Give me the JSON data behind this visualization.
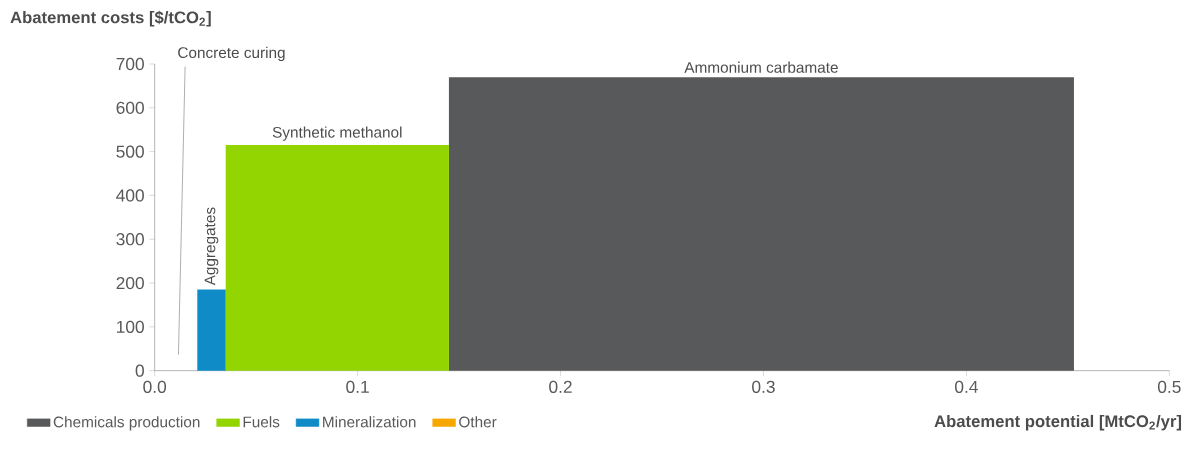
{
  "chart_data": {
    "type": "area",
    "ylabel": "Abatement costs [$/tCO$_{2}$]",
    "xlabel": "Abatement potential [MtCO$_{2}$/yr]",
    "series": [
      {
        "name": "Chemicals production",
        "color": "#58595b",
        "x": [
          0.145,
          0.453
        ],
        "values": [
          670,
          670
        ]
      },
      {
        "name": "Fuels",
        "color": "#93d500",
        "x": [
          0.035,
          0.145
        ],
        "values": [
          515,
          515
        ]
      },
      {
        "name": "Mineralization",
        "color": "#0f8cc8",
        "x": [
          0.021,
          0.035
        ],
        "values": [
          185,
          185
        ]
      },
      {
        "name": "Other",
        "color": "#f7a800"
      }
    ],
    "annotations": [
      "Concrete curing",
      {
        "text": "Aggregates",
        "x": 0.028,
        "y": 185
      },
      {
        "text": "Synthetic methanol",
        "x": 0.09,
        "y": 515
      },
      {
        "text": "Ammonium carbamate",
        "x": 0.299,
        "y": 670
      }
    ],
    "xlim": [
      0,
      0.5
    ],
    "ylim": [
      0,
      700
    ],
    "xticks": [
      {
        "value": 0,
        "label": "0.0"
      },
      0.1,
      0.2,
      0.3,
      0.4,
      0.5
    ],
    "yticks": [
      0,
      100,
      200,
      300,
      400,
      500,
      600,
      700
    ],
    "grid": false,
    "legend": "bottom"
  }
}
